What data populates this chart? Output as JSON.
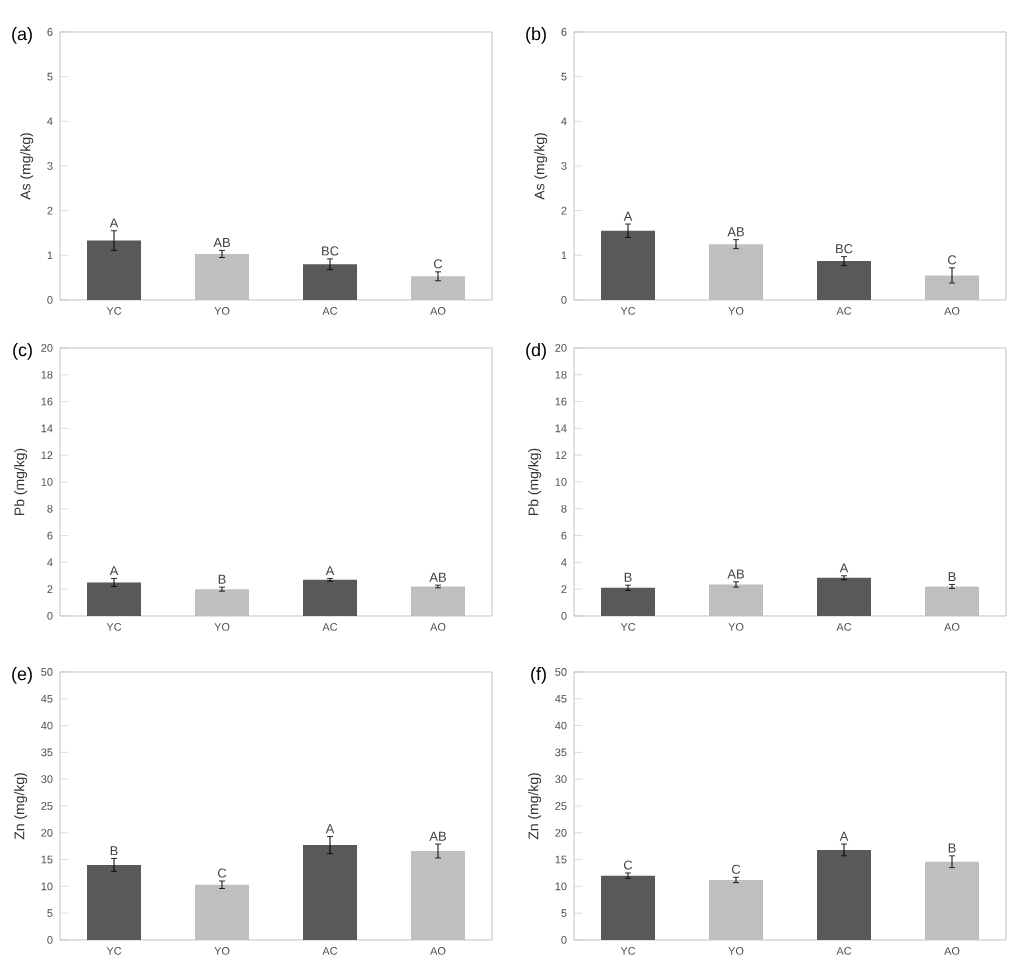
{
  "chart_data": [
    {
      "type": "bar",
      "title": "(a)",
      "ylabel": "As (mg/kg)",
      "categories": [
        "YC",
        "YO",
        "AC",
        "AO"
      ],
      "values": [
        1.33,
        1.03,
        0.8,
        0.53
      ],
      "errors": [
        0.22,
        0.08,
        0.12,
        0.1
      ],
      "colors": [
        "#595959",
        "#bfbfbf",
        "#595959",
        "#bfbfbf"
      ],
      "ylim": [
        0,
        6
      ],
      "yticks": [
        0,
        1,
        2,
        3,
        4,
        5,
        6
      ],
      "annotations": [
        {
          "text": "A",
          "x": "YC",
          "y": 1.55
        },
        {
          "text": "AB",
          "x": "YO",
          "y": 1.11
        },
        {
          "text": "BC",
          "x": "AC",
          "y": 0.92
        },
        {
          "text": "C",
          "x": "AO",
          "y": 0.63
        }
      ]
    },
    {
      "type": "bar",
      "title": "(b)",
      "ylabel": "As (mg/kg)",
      "categories": [
        "YC",
        "YO",
        "AC",
        "AO"
      ],
      "values": [
        1.55,
        1.25,
        0.87,
        0.55
      ],
      "errors": [
        0.15,
        0.1,
        0.1,
        0.17
      ],
      "colors": [
        "#595959",
        "#bfbfbf",
        "#595959",
        "#bfbfbf"
      ],
      "ylim": [
        0,
        6
      ],
      "yticks": [
        0,
        1,
        2,
        3,
        4,
        5,
        6
      ],
      "annotations": [
        {
          "text": "A",
          "x": "YC",
          "y": 1.7
        },
        {
          "text": "AB",
          "x": "YO",
          "y": 1.35
        },
        {
          "text": "BC",
          "x": "AC",
          "y": 0.97
        },
        {
          "text": "C",
          "x": "AO",
          "y": 0.72
        }
      ]
    },
    {
      "type": "bar",
      "title": "(c)",
      "ylabel": "Pb (mg/kg)",
      "categories": [
        "YC",
        "YO",
        "AC",
        "AO"
      ],
      "values": [
        2.5,
        2.0,
        2.7,
        2.2
      ],
      "errors": [
        0.3,
        0.15,
        0.1,
        0.1
      ],
      "colors": [
        "#595959",
        "#bfbfbf",
        "#595959",
        "#bfbfbf"
      ],
      "ylim": [
        0,
        20
      ],
      "yticks": [
        0,
        2,
        4,
        6,
        8,
        10,
        12,
        14,
        16,
        18,
        20
      ],
      "annotations": [
        {
          "text": "A",
          "x": "YC",
          "y": 2.8
        },
        {
          "text": "B",
          "x": "YO",
          "y": 2.15
        },
        {
          "text": "A",
          "x": "AC",
          "y": 2.8
        },
        {
          "text": "AB",
          "x": "AO",
          "y": 2.3
        }
      ]
    },
    {
      "type": "bar",
      "title": "(d)",
      "ylabel": "Pb (mg/kg)",
      "categories": [
        "YC",
        "YO",
        "AC",
        "AO"
      ],
      "values": [
        2.1,
        2.35,
        2.85,
        2.2
      ],
      "errors": [
        0.2,
        0.2,
        0.15,
        0.15
      ],
      "colors": [
        "#595959",
        "#bfbfbf",
        "#595959",
        "#bfbfbf"
      ],
      "ylim": [
        0,
        20
      ],
      "yticks": [
        0,
        2,
        4,
        6,
        8,
        10,
        12,
        14,
        16,
        18,
        20
      ],
      "annotations": [
        {
          "text": "B",
          "x": "YC",
          "y": 2.3
        },
        {
          "text": "AB",
          "x": "YO",
          "y": 2.55
        },
        {
          "text": "A",
          "x": "AC",
          "y": 3.0
        },
        {
          "text": "B",
          "x": "AO",
          "y": 2.35
        }
      ]
    },
    {
      "type": "bar",
      "title": "(e)",
      "ylabel": "Zn (mg/kg)",
      "categories": [
        "YC",
        "YO",
        "AC",
        "AO"
      ],
      "values": [
        14.0,
        10.3,
        17.7,
        16.6
      ],
      "errors": [
        1.2,
        0.7,
        1.6,
        1.3
      ],
      "colors": [
        "#595959",
        "#bfbfbf",
        "#595959",
        "#bfbfbf"
      ],
      "ylim": [
        0,
        50
      ],
      "yticks": [
        0,
        5,
        10,
        15,
        20,
        25,
        30,
        35,
        40,
        45,
        50
      ],
      "annotations": [
        {
          "text": "B",
          "x": "YC",
          "y": 15.2
        },
        {
          "text": "C",
          "x": "YO",
          "y": 11.0
        },
        {
          "text": "A",
          "x": "AC",
          "y": 19.3
        },
        {
          "text": "AB",
          "x": "AO",
          "y": 17.9
        }
      ]
    },
    {
      "type": "bar",
      "title": "(f)",
      "ylabel": "Zn (mg/kg)",
      "categories": [
        "YC",
        "YO",
        "AC",
        "AO"
      ],
      "values": [
        12.0,
        11.2,
        16.8,
        14.6
      ],
      "errors": [
        0.5,
        0.5,
        1.1,
        1.1
      ],
      "colors": [
        "#595959",
        "#bfbfbf",
        "#595959",
        "#bfbfbf"
      ],
      "ylim": [
        0,
        50
      ],
      "yticks": [
        0,
        5,
        10,
        15,
        20,
        25,
        30,
        35,
        40,
        45,
        50
      ],
      "annotations": [
        {
          "text": "C",
          "x": "YC",
          "y": 12.5
        },
        {
          "text": "C",
          "x": "YO",
          "y": 11.7
        },
        {
          "text": "A",
          "x": "AC",
          "y": 17.9
        },
        {
          "text": "B",
          "x": "AO",
          "y": 15.7
        }
      ]
    }
  ]
}
